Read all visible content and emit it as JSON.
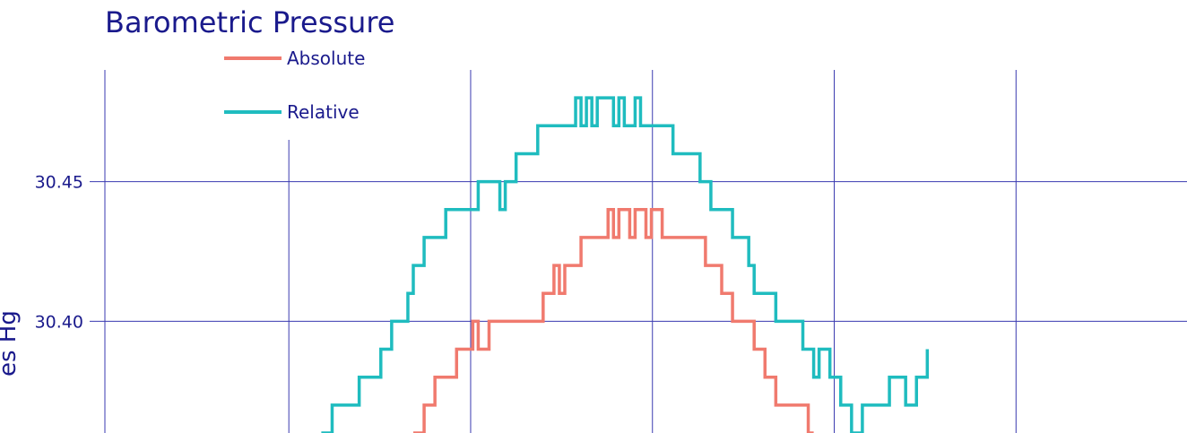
{
  "chart_data": {
    "type": "line",
    "title": "Barometric Pressure",
    "ylabel": "es Hg",
    "ylim": [
      30.36,
      30.49
    ],
    "xlim": [
      0,
      100
    ],
    "yticks": [
      30.45,
      30.4
    ],
    "ytick_labels": [
      "30.45",
      "30.40"
    ],
    "legend_placement": "top-left",
    "grid": true,
    "colors": {
      "grid": "#3a3ab0",
      "text": "#1a1a8c"
    },
    "series": [
      {
        "name": "Absolute",
        "color": "#f07a6e",
        "x": [
          28.5,
          29.5,
          30.5,
          31.5,
          32.5,
          33.5,
          34,
          34.5,
          35.5,
          36,
          36.5,
          38,
          39,
          40.5,
          41,
          41.5,
          42,
          42.5,
          43.5,
          44,
          44.5,
          45,
          45.5,
          46.5,
          47,
          47.5,
          48,
          48.5,
          49,
          49.5,
          50,
          50.5,
          51.5,
          52,
          53,
          55,
          55.5,
          56,
          57,
          57.5,
          58,
          59.5,
          60,
          61,
          62,
          63,
          64,
          65,
          65.5
        ],
        "y": [
          30.36,
          30.37,
          30.38,
          30.38,
          30.39,
          30.39,
          30.4,
          30.39,
          30.4,
          30.4,
          30.4,
          30.4,
          30.4,
          30.41,
          30.41,
          30.42,
          30.41,
          30.42,
          30.42,
          30.43,
          30.43,
          30.43,
          30.43,
          30.44,
          30.43,
          30.44,
          30.44,
          30.43,
          30.44,
          30.44,
          30.43,
          30.44,
          30.43,
          30.43,
          30.43,
          30.43,
          30.42,
          30.42,
          30.41,
          30.41,
          30.4,
          30.4,
          30.39,
          30.38,
          30.37,
          30.37,
          30.37,
          30.36,
          30.36
        ]
      },
      {
        "name": "Relative",
        "color": "#1fbcbf",
        "x": [
          20,
          21,
          22.5,
          23.5,
          24,
          25.5,
          26.5,
          28,
          28.5,
          29.5,
          30.5,
          31.5,
          32.5,
          33.5,
          34.5,
          36.5,
          37,
          37.5,
          38,
          38.5,
          39.5,
          40,
          40.5,
          42,
          43.5,
          44,
          44.5,
          45,
          45.5,
          46.5,
          47,
          47.5,
          48,
          48.5,
          49,
          49.5,
          50,
          50.5,
          51.5,
          52.5,
          53.5,
          55,
          55.5,
          56,
          57,
          58,
          59.5,
          60,
          61,
          62,
          63.5,
          64.5,
          65.5,
          66,
          67,
          68,
          69,
          70,
          71,
          72.5,
          73,
          74,
          75,
          76
        ],
        "y": [
          30.36,
          30.37,
          30.37,
          30.38,
          30.38,
          30.39,
          30.4,
          30.41,
          30.42,
          30.43,
          30.43,
          30.44,
          30.44,
          30.44,
          30.45,
          30.44,
          30.45,
          30.45,
          30.46,
          30.46,
          30.46,
          30.47,
          30.47,
          30.47,
          30.48,
          30.47,
          30.48,
          30.47,
          30.48,
          30.48,
          30.47,
          30.48,
          30.47,
          30.47,
          30.48,
          30.47,
          30.47,
          30.47,
          30.47,
          30.46,
          30.46,
          30.45,
          30.45,
          30.44,
          30.44,
          30.43,
          30.42,
          30.41,
          30.41,
          30.4,
          30.4,
          30.39,
          30.38,
          30.39,
          30.38,
          30.37,
          30.36,
          30.37,
          30.37,
          30.38,
          30.38,
          30.37,
          30.38,
          30.39
        ]
      }
    ]
  }
}
